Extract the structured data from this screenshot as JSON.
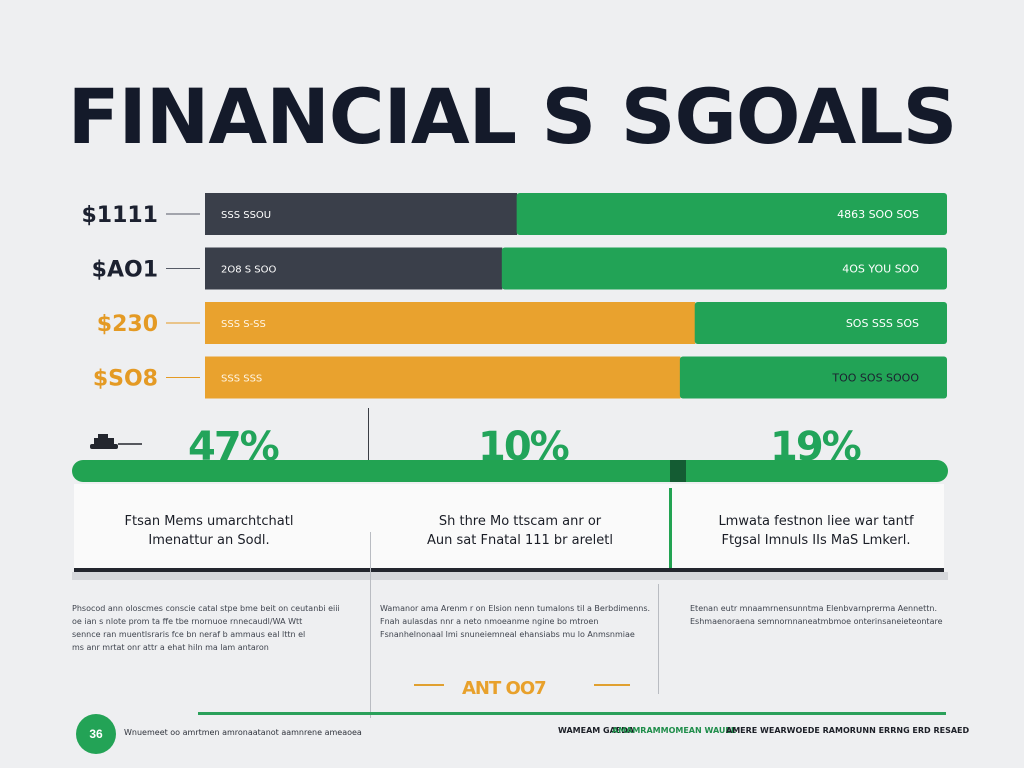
{
  "title": "FINANCIAL S SGOALS",
  "chart_data": {
    "type": "bar",
    "orientation": "horizontal",
    "stacked": true,
    "title": "FINANCIAL S SGOALS",
    "categories": [
      "$1111",
      "$AO1",
      "$230",
      "$SO8"
    ],
    "bar_labels": [
      {
        "left": "SSS SSOU",
        "right": "4863 SOO SOS"
      },
      {
        "left": "2O8 S SOO",
        "right": "4OS YOU SOO"
      },
      {
        "left": "SSS S-SS",
        "right": "SOS SSS SOS"
      },
      {
        "left": "SSS SSS",
        "right": "TOO SOS SOOO"
      }
    ],
    "series": [
      {
        "name": "",
        "color": "#3a3f4a",
        "values": [
          42,
          40,
          0,
          0
        ]
      },
      {
        "name": "",
        "color": "#e9a22e",
        "values": [
          0,
          0,
          66,
          64
        ]
      },
      {
        "name": "",
        "color": "#22a356",
        "values": [
          58,
          60,
          34,
          36
        ]
      }
    ],
    "xlim": [
      0,
      100
    ],
    "legend": "none",
    "grid": false
  },
  "percentages": [
    "47%",
    "10%",
    "19%"
  ],
  "panels": [
    {
      "line1": "Ftsan Mems umarchtchatl",
      "line2": "Imenattur an Sodl."
    },
    {
      "line1": "Sh thre Mo ttscam anr or",
      "line2": "Aun sat Fnatal 111 br areletl"
    },
    {
      "line1": "Lmwata festnon liee war tantf",
      "line2": "Ftgsal Imnuls IIs MaS Lmkerl."
    }
  ],
  "notes": [
    {
      "lines": [
        "Phsocod ann oloscmes conscie catal stpe bme beit on ceutanbi eiii",
        "oe ian s nlote prom ta ffe tbe rnornuoe rnnecaudl/WA Wtt",
        "sennce ran muentlsraris fce bn neraf b ammaus eal lttn el",
        "ms anr mrtat onr attr a ehat hiln ma lam antaron"
      ]
    },
    {
      "lines": [
        "Wamanor ama Arenm r on Elsion nenn tumalons til a Berbdimenns.",
        "Fnah aulasdas nnr a neto nmoeanme ngine bo mtroen",
        "Fsnanhelnonaal lmi snuneiemneal ehansiabs mu lo Anmsnmiae"
      ]
    },
    {
      "lines": [
        "Etenan eutr mnaamrnensunntma Elenbvarnprerma Aennettn.",
        "Eshmaenoraena semnornnaneatmbmoe onterinsaneieteontare"
      ]
    }
  ],
  "footer": {
    "badge": "36",
    "mid_text": "ANT OO7",
    "left_text": "Wnuemeet oo amrtmen amronaatanot aamnrene ameaoea",
    "right_text_a": "WAMEAM GAEDA",
    "right_text_b": "AMAMRAMMOMEAN WAUEE",
    "right_text_c": "AMERE WEARWOEDE RAMORUNN ERRNG ERD RESAED"
  },
  "colors": {
    "dark": "#3a3f4a",
    "green": "#22a356",
    "orange": "#e9a22e",
    "title": "#141a2a"
  }
}
